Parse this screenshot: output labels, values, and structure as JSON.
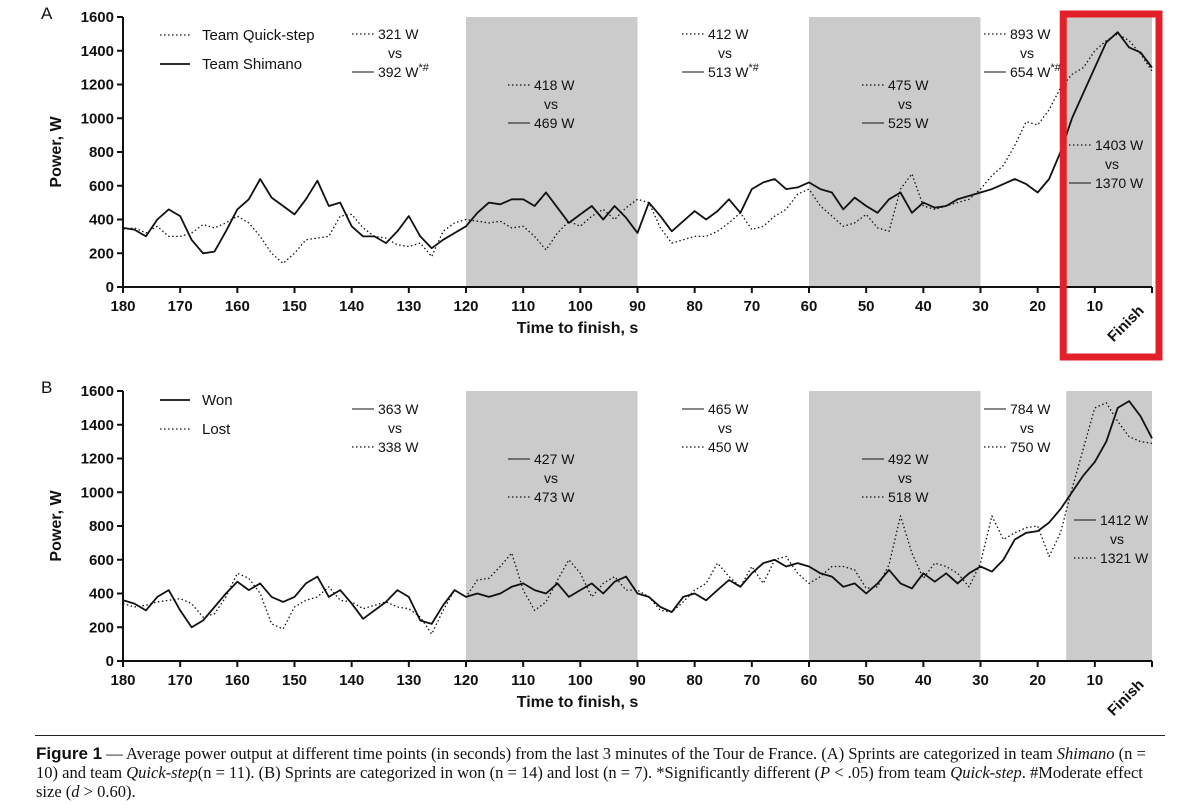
{
  "chart_data": [
    {
      "type": "line",
      "panel_label": "A",
      "xlabel": "Time to finish, s",
      "ylabel": "Power, W",
      "xlim": [
        180,
        0
      ],
      "ylim": [
        0,
        1600
      ],
      "x_ticks": [
        "180",
        "170",
        "160",
        "150",
        "140",
        "130",
        "120",
        "110",
        "100",
        "90",
        "80",
        "70",
        "60",
        "50",
        "40",
        "30",
        "20",
        "10"
      ],
      "y_ticks": [
        "0",
        "200",
        "400",
        "600",
        "800",
        "1000",
        "1200",
        "1400",
        "1600"
      ],
      "finish_label": "Finish",
      "shaded_ranges": [
        [
          120,
          90
        ],
        [
          60,
          30
        ],
        [
          15,
          0
        ]
      ],
      "highlight_box": {
        "from": 15,
        "to": 0,
        "color": "#e3202a"
      },
      "legend": [
        {
          "name": "Team Quick-step",
          "style": "dotted"
        },
        {
          "name": "Team Shimano",
          "style": "solid"
        }
      ],
      "series": [
        {
          "name": "Team Quick-step",
          "style": "dotted",
          "x": [
            180,
            178,
            176,
            174,
            172,
            170,
            168,
            166,
            164,
            162,
            160,
            158,
            156,
            154,
            152,
            150,
            148,
            146,
            144,
            142,
            140,
            138,
            136,
            134,
            132,
            130,
            128,
            126,
            124,
            122,
            120,
            118,
            116,
            114,
            112,
            110,
            108,
            106,
            104,
            102,
            100,
            98,
            96,
            94,
            92,
            90,
            88,
            86,
            84,
            82,
            80,
            78,
            76,
            74,
            72,
            70,
            68,
            66,
            64,
            62,
            60,
            58,
            56,
            54,
            52,
            50,
            48,
            46,
            44,
            42,
            40,
            38,
            36,
            34,
            32,
            30,
            28,
            26,
            24,
            22,
            20,
            18,
            16,
            14,
            12,
            10,
            8,
            6,
            4,
            2,
            0
          ],
          "y": [
            340,
            350,
            320,
            360,
            300,
            300,
            320,
            370,
            350,
            380,
            420,
            380,
            300,
            200,
            140,
            200,
            280,
            290,
            300,
            420,
            430,
            350,
            300,
            290,
            250,
            240,
            260,
            180,
            330,
            380,
            400,
            390,
            380,
            390,
            350,
            360,
            300,
            220,
            320,
            390,
            360,
            420,
            460,
            400,
            470,
            520,
            500,
            350,
            260,
            280,
            300,
            300,
            330,
            380,
            440,
            340,
            360,
            420,
            460,
            550,
            580,
            480,
            420,
            360,
            380,
            430,
            350,
            330,
            580,
            670,
            480,
            460,
            480,
            500,
            520,
            580,
            660,
            720,
            840,
            980,
            960,
            1050,
            1180,
            1260,
            1300,
            1400,
            1460,
            1500,
            1460,
            1380,
            1280
          ]
        },
        {
          "name": "Team Shimano",
          "style": "solid",
          "x": [
            180,
            178,
            176,
            174,
            172,
            170,
            168,
            166,
            164,
            162,
            160,
            158,
            156,
            154,
            152,
            150,
            148,
            146,
            144,
            142,
            140,
            138,
            136,
            134,
            132,
            130,
            128,
            126,
            124,
            122,
            120,
            118,
            116,
            114,
            112,
            110,
            108,
            106,
            104,
            102,
            100,
            98,
            96,
            94,
            92,
            90,
            88,
            86,
            84,
            82,
            80,
            78,
            76,
            74,
            72,
            70,
            68,
            66,
            64,
            62,
            60,
            58,
            56,
            54,
            52,
            50,
            48,
            46,
            44,
            42,
            40,
            38,
            36,
            34,
            32,
            30,
            28,
            26,
            24,
            22,
            20,
            18,
            16,
            14,
            12,
            10,
            8,
            6,
            4,
            2,
            0
          ],
          "y": [
            350,
            340,
            300,
            400,
            460,
            420,
            280,
            200,
            210,
            330,
            460,
            520,
            640,
            530,
            480,
            430,
            520,
            630,
            480,
            500,
            360,
            300,
            300,
            260,
            330,
            420,
            300,
            230,
            280,
            320,
            360,
            440,
            500,
            490,
            520,
            520,
            480,
            560,
            470,
            380,
            430,
            480,
            400,
            480,
            410,
            320,
            500,
            420,
            330,
            390,
            450,
            400,
            450,
            520,
            440,
            580,
            620,
            640,
            580,
            590,
            620,
            580,
            560,
            460,
            530,
            480,
            440,
            520,
            560,
            440,
            500,
            470,
            480,
            520,
            540,
            560,
            580,
            610,
            640,
            610,
            560,
            640,
            800,
            1000,
            1150,
            1300,
            1450,
            1510,
            1420,
            1390,
            1300
          ]
        }
      ],
      "annotations": [
        {
          "period": "180-120",
          "quick_step": "321 W",
          "vs": "vs",
          "shimano": "392 W",
          "sig": "*#"
        },
        {
          "period": "120-90",
          "quick_step": "418 W",
          "vs": "vs",
          "shimano": "469 W",
          "sig": ""
        },
        {
          "period": "90-60",
          "quick_step": "412 W",
          "vs": "vs",
          "shimano": "513 W",
          "sig": "*#"
        },
        {
          "period": "60-30",
          "quick_step": "475 W",
          "vs": "vs",
          "shimano": "525 W",
          "sig": ""
        },
        {
          "period": "30-15",
          "quick_step": "893 W",
          "vs": "vs",
          "shimano": "654 W",
          "sig": "*#"
        },
        {
          "period": "15-0",
          "quick_step": "1403 W",
          "vs": "vs",
          "shimano": "1370 W",
          "sig": ""
        }
      ]
    },
    {
      "type": "line",
      "panel_label": "B",
      "xlabel": "Time to finish, s",
      "ylabel": "Power, W",
      "xlim": [
        180,
        0
      ],
      "ylim": [
        0,
        1600
      ],
      "x_ticks": [
        "180",
        "170",
        "160",
        "150",
        "140",
        "130",
        "120",
        "110",
        "100",
        "90",
        "80",
        "70",
        "60",
        "50",
        "40",
        "30",
        "20",
        "10"
      ],
      "y_ticks": [
        "0",
        "200",
        "400",
        "600",
        "800",
        "1000",
        "1200",
        "1400",
        "1600"
      ],
      "finish_label": "Finish",
      "shaded_ranges": [
        [
          120,
          90
        ],
        [
          60,
          30
        ],
        [
          15,
          0
        ]
      ],
      "legend": [
        {
          "name": "Won",
          "style": "solid"
        },
        {
          "name": "Lost",
          "style": "dotted"
        }
      ],
      "series": [
        {
          "name": "Won",
          "style": "solid",
          "x": [
            180,
            178,
            176,
            174,
            172,
            170,
            168,
            166,
            164,
            162,
            160,
            158,
            156,
            154,
            152,
            150,
            148,
            146,
            144,
            142,
            140,
            138,
            136,
            134,
            132,
            130,
            128,
            126,
            124,
            122,
            120,
            118,
            116,
            114,
            112,
            110,
            108,
            106,
            104,
            102,
            100,
            98,
            96,
            94,
            92,
            90,
            88,
            86,
            84,
            82,
            80,
            78,
            76,
            74,
            72,
            70,
            68,
            66,
            64,
            62,
            60,
            58,
            56,
            54,
            52,
            50,
            48,
            46,
            44,
            42,
            40,
            38,
            36,
            34,
            32,
            30,
            28,
            26,
            24,
            22,
            20,
            18,
            16,
            14,
            12,
            10,
            8,
            6,
            4,
            2,
            0
          ],
          "y": [
            360,
            340,
            300,
            380,
            420,
            300,
            200,
            240,
            320,
            400,
            470,
            420,
            460,
            380,
            350,
            380,
            460,
            500,
            380,
            420,
            340,
            250,
            300,
            350,
            420,
            380,
            240,
            220,
            330,
            420,
            380,
            400,
            380,
            400,
            440,
            460,
            420,
            400,
            460,
            380,
            420,
            460,
            400,
            470,
            500,
            400,
            380,
            320,
            290,
            380,
            400,
            360,
            420,
            480,
            440,
            520,
            580,
            600,
            560,
            580,
            560,
            520,
            500,
            440,
            460,
            400,
            460,
            540,
            460,
            430,
            520,
            470,
            520,
            460,
            520,
            560,
            530,
            600,
            720,
            760,
            770,
            820,
            900,
            1000,
            1100,
            1180,
            1300,
            1500,
            1540,
            1450,
            1320
          ]
        },
        {
          "name": "Lost",
          "style": "dotted",
          "x": [
            180,
            178,
            176,
            174,
            172,
            170,
            168,
            166,
            164,
            162,
            160,
            158,
            156,
            154,
            152,
            150,
            148,
            146,
            144,
            142,
            140,
            138,
            136,
            134,
            132,
            130,
            128,
            126,
            124,
            122,
            120,
            118,
            116,
            114,
            112,
            110,
            108,
            106,
            104,
            102,
            100,
            98,
            96,
            94,
            92,
            90,
            88,
            86,
            84,
            82,
            80,
            78,
            76,
            74,
            72,
            70,
            68,
            66,
            64,
            62,
            60,
            58,
            56,
            54,
            52,
            50,
            48,
            46,
            44,
            42,
            40,
            38,
            36,
            34,
            32,
            30,
            28,
            26,
            24,
            22,
            20,
            18,
            16,
            14,
            12,
            10,
            8,
            6,
            4,
            2,
            0
          ],
          "y": [
            340,
            320,
            330,
            350,
            360,
            370,
            340,
            260,
            280,
            380,
            520,
            490,
            400,
            220,
            190,
            320,
            360,
            380,
            440,
            360,
            350,
            310,
            330,
            350,
            320,
            310,
            260,
            160,
            300,
            420,
            380,
            480,
            490,
            560,
            640,
            420,
            300,
            350,
            480,
            600,
            520,
            380,
            460,
            500,
            420,
            420,
            380,
            300,
            290,
            350,
            420,
            460,
            580,
            500,
            440,
            560,
            460,
            600,
            620,
            520,
            460,
            500,
            560,
            560,
            540,
            430,
            440,
            570,
            860,
            640,
            490,
            580,
            560,
            520,
            440,
            580,
            860,
            720,
            760,
            790,
            800,
            620,
            760,
            1020,
            1260,
            1500,
            1530,
            1420,
            1330,
            1300,
            1290
          ]
        }
      ],
      "annotations": [
        {
          "period": "180-120",
          "won": "363 W",
          "vs": "vs",
          "lost": "338 W"
        },
        {
          "period": "120-90",
          "won": "427 W",
          "vs": "vs",
          "lost": "473 W"
        },
        {
          "period": "90-60",
          "won": "465 W",
          "vs": "vs",
          "lost": "450 W"
        },
        {
          "period": "60-30",
          "won": "492 W",
          "vs": "vs",
          "lost": "518 W"
        },
        {
          "period": "30-15",
          "won": "784 W",
          "vs": "vs",
          "lost": "750 W"
        },
        {
          "period": "15-0",
          "won": "1412 W",
          "vs": "vs",
          "lost": "1321 W"
        }
      ]
    }
  ],
  "caption": {
    "figure_label": "Figure 1",
    "dash": "—",
    "t1": "Average power output at different time points (in seconds) from the last 3 minutes of the Tour de France. (A) Sprints are categorized in team",
    "t2": "Shimano",
    "t3": "(n = 10) and team",
    "t4": "Quick-step",
    "t5": "(n = 11). (B) Sprints are categorized in won (n = 14) and lost (n = 7). *Significantly different (",
    "t6": "P",
    "t7": "< .05) from team",
    "t8": "Quick-step",
    "t9": ". #Moderate effect size (",
    "t10": "d",
    "t11": "> 0.60)."
  }
}
